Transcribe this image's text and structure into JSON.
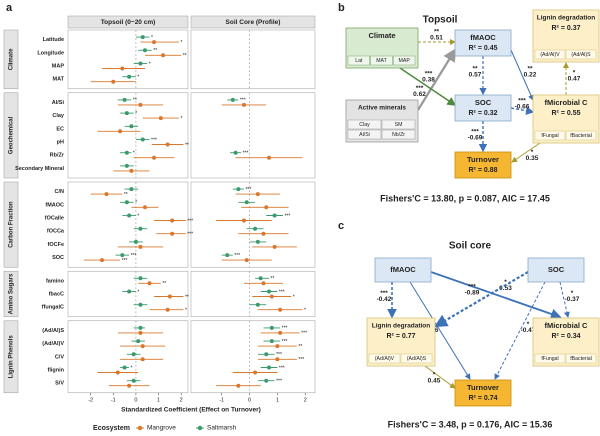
{
  "panel_a": {
    "label": "a",
    "facets": [
      "Topsoil (0~20 cm)",
      "Soil Core (Profile)"
    ],
    "facet_xlim": [
      [
        -3,
        2.3
      ],
      [
        -2.1,
        2.35
      ]
    ],
    "facet_xticks": [
      [
        -2,
        -1,
        0,
        1,
        2
      ],
      [
        -1,
        0,
        1,
        2
      ]
    ],
    "x_label": "Standardized Coefficient (Effect on Turnover)",
    "legend_title": "Ecosystem",
    "series": [
      {
        "name": "Mangrove",
        "color": "#d9782d"
      },
      {
        "name": "Saltmarsh",
        "color": "#3a9a6e"
      }
    ],
    "groups": [
      {
        "name": "Climate",
        "rows": [
          {
            "label": "Latitude",
            "topsoil": [
              [
                0.8,
                0.2,
                1.9,
                "*"
              ],
              [
                0.3,
                0,
                0.6,
                "*"
              ]
            ]
          },
          {
            "label": "Longitude",
            "topsoil": [
              [
                1.2,
                0.4,
                2.0,
                "**"
              ],
              [
                0.4,
                0.1,
                0.7,
                "**"
              ]
            ]
          },
          {
            "label": "MAP",
            "topsoil": [
              [
                -0.6,
                -1.5,
                0.4
              ],
              [
                0.2,
                -0.1,
                0.5,
                "*"
              ]
            ]
          },
          {
            "label": "MAT",
            "topsoil": [
              [
                -1.0,
                -2.0,
                0
              ],
              [
                -0.3,
                -0.6,
                0,
                "*"
              ]
            ]
          }
        ]
      },
      {
        "name": "Geochemical",
        "rows": [
          {
            "label": "Al/Si",
            "topsoil": [
              [
                0.2,
                -0.8,
                1.2
              ],
              [
                -0.5,
                -0.8,
                -0.2,
                "**"
              ]
            ],
            "soil_core": [
              [
                -0.2,
                -1.0,
                0.6
              ],
              [
                -0.6,
                -0.8,
                -0.4,
                "***"
              ]
            ]
          },
          {
            "label": "Clay",
            "topsoil": [
              [
                1.1,
                0.3,
                1.9,
                "*"
              ],
              [
                -0.4,
                -0.7,
                -0.1,
                "*"
              ]
            ]
          },
          {
            "label": "EC",
            "topsoil": [
              [
                -0.7,
                -1.7,
                0.2
              ],
              [
                -0.2,
                -0.5,
                0.1
              ]
            ]
          },
          {
            "label": "pH",
            "topsoil": [
              [
                1.4,
                0.7,
                2.1,
                "**"
              ],
              [
                0.3,
                0,
                0.6,
                "***"
              ]
            ]
          },
          {
            "label": "Rb/Zr",
            "topsoil": [
              [
                0.8,
                -0.1,
                1.7
              ],
              [
                -0.4,
                -0.7,
                -0.2,
                "*"
              ]
            ],
            "soil_core": [
              [
                0.7,
                -0.5,
                1.9
              ],
              [
                -0.5,
                -0.7,
                -0.3,
                "***"
              ]
            ]
          },
          {
            "label": "Secondary Mineral",
            "topsoil": [
              [
                -0.2,
                -1,
                0.6
              ],
              [
                -0.4,
                -0.7,
                -0.1
              ]
            ]
          }
        ]
      },
      {
        "name": "Carbon Fraction",
        "rows": [
          {
            "label": "C/N",
            "topsoil": [
              [
                -1.3,
                -2.0,
                -0.6,
                "**"
              ],
              [
                -0.2,
                -0.5,
                0.1
              ]
            ],
            "soil_core": [
              [
                0.3,
                -0.5,
                1.1
              ],
              [
                -0.4,
                -0.6,
                -0.2,
                "***"
              ]
            ]
          },
          {
            "label": "fMAOC",
            "topsoil": [
              [
                0.4,
                -0.2,
                1.0
              ],
              [
                -0.4,
                -0.7,
                -0.1,
                "*"
              ]
            ],
            "soil_core": [
              [
                0.6,
                -0.3,
                1.4
              ],
              [
                -0.1,
                -0.4,
                0.2
              ]
            ]
          },
          {
            "label": "fOCalle",
            "topsoil": [
              [
                1.6,
                0.8,
                2.2,
                "***"
              ],
              [
                -0.3,
                -0.6,
                0,
                "*"
              ]
            ],
            "soil_core": [
              [
                -0.2,
                -1.2,
                0.8
              ],
              [
                0.9,
                0.6,
                1.2,
                "***"
              ]
            ]
          },
          {
            "label": "fOCCa",
            "topsoil": [
              [
                1.6,
                0.9,
                2.2,
                "***"
              ],
              [
                0.2,
                -0.1,
                0.5
              ]
            ],
            "soil_core": [
              [
                0.5,
                -0.4,
                1.4
              ],
              [
                0.2,
                -0.1,
                0.5
              ]
            ]
          },
          {
            "label": "fOCFe",
            "topsoil": [
              [
                0.2,
                -0.8,
                1.2
              ],
              [
                0,
                -0.3,
                0.3
              ]
            ],
            "soil_core": [
              [
                0.9,
                0.1,
                1.7
              ],
              [
                0.3,
                0,
                0.6
              ]
            ]
          },
          {
            "label": "SOC",
            "topsoil": [
              [
                -1.5,
                -2.3,
                -0.7,
                "***"
              ],
              [
                -0.6,
                -0.9,
                -0.3,
                "***"
              ]
            ],
            "soil_core": [
              [
                -0.1,
                -1,
                0.8
              ],
              [
                -0.8,
                -1.0,
                -0.6,
                "***"
              ]
            ]
          }
        ]
      },
      {
        "name": "Amino Sugars",
        "rows": [
          {
            "label": "famino",
            "topsoil": [
              [
                0.6,
                0.1,
                1.1,
                "**"
              ],
              [
                0.2,
                -0.1,
                0.5
              ]
            ],
            "soil_core": [
              [
                0.5,
                -0.2,
                1.2
              ],
              [
                0.4,
                0.2,
                0.7,
                "**"
              ]
            ]
          },
          {
            "label": "fbacC",
            "topsoil": [
              [
                1.5,
                0.8,
                2.1,
                "**"
              ],
              [
                -0.3,
                -0.6,
                0,
                "*"
              ]
            ],
            "soil_core": [
              [
                0.8,
                0.1,
                1.5,
                "*"
              ],
              [
                0.7,
                0.4,
                1.0,
                "***"
              ]
            ]
          },
          {
            "label": "ffungalC",
            "topsoil": [
              [
                1.4,
                0.6,
                2.1,
                "*"
              ],
              [
                0.2,
                -0.1,
                0.5
              ]
            ],
            "soil_core": [
              [
                1.1,
                0.3,
                1.9,
                "*"
              ],
              [
                0.3,
                0,
                0.6
              ]
            ]
          }
        ]
      },
      {
        "name": "Lignin Phenols",
        "rows": [
          {
            "label": "(Ad/Al)S",
            "topsoil": [
              [
                0.2,
                -0.8,
                1.2
              ],
              [
                0.2,
                -0.1,
                0.4
              ]
            ],
            "soil_core": [
              [
                1.1,
                0.4,
                1.8,
                "***"
              ],
              [
                0.8,
                0.5,
                1.1,
                "***"
              ]
            ]
          },
          {
            "label": "(Ad/Al)V",
            "topsoil": [
              [
                0.3,
                -0.7,
                1.3
              ],
              [
                0.1,
                -0.2,
                0.4
              ]
            ],
            "soil_core": [
              [
                1.0,
                0.3,
                1.7,
                "**"
              ],
              [
                0.8,
                0.5,
                1.1,
                "***"
              ]
            ]
          },
          {
            "label": "C/V",
            "topsoil": [
              [
                0.3,
                -0.7,
                1.2
              ],
              [
                -0.1,
                -0.4,
                0.2
              ]
            ],
            "soil_core": [
              [
                1.0,
                0.3,
                1.7,
                "***"
              ],
              [
                0.6,
                0.3,
                0.9,
                "***"
              ]
            ]
          },
          {
            "label": "flignin",
            "topsoil": [
              [
                -0.8,
                -1.7,
                0.1
              ],
              [
                -0.5,
                -0.7,
                -0.3,
                "*"
              ]
            ],
            "soil_core": [
              [
                0.2,
                -0.6,
                1.0
              ],
              [
                0.7,
                0.4,
                1.0,
                "***"
              ]
            ]
          },
          {
            "label": "S/V",
            "topsoil": [
              [
                -0.3,
                -1.2,
                0.6
              ],
              [
                -0.1,
                -0.4,
                0.2
              ]
            ],
            "soil_core": [
              [
                -0.4,
                -1.2,
                0.4
              ],
              [
                0.6,
                0.3,
                0.9,
                "***"
              ]
            ]
          }
        ]
      }
    ]
  },
  "panel_b": {
    "label": "b",
    "title": "Topsoil",
    "fit": "Fishers'C = 13.80, p = 0.087, AIC = 17.45",
    "nodes": [
      {
        "label": "Climate",
        "subs": [
          "Lat",
          "MAT",
          "MAP"
        ]
      },
      {
        "label": "Active minerals",
        "subs": [
          "Clay",
          "SM",
          "Al/Si",
          "Nb/Zr"
        ]
      },
      {
        "label": "fMAOC",
        "r2": "R² = 0.45"
      },
      {
        "label": "SOC",
        "r2": "R² = 0.32"
      },
      {
        "label": "Turnover",
        "r2": "R² = 0.88"
      },
      {
        "label": "Lignin degradation",
        "r2": "R² = 0.37",
        "subs": [
          "(Ad/Al)V",
          "(Ad/Al)S"
        ]
      },
      {
        "label": "fMicrobial C",
        "r2": "R² = 0.55",
        "subs": [
          "fFungal",
          "fBacterial"
        ]
      }
    ],
    "edges": [
      {
        "coef": 0.51,
        "stars": "**"
      },
      {
        "coef": 0.38,
        "stars": "***"
      },
      {
        "coef": 0.62,
        "stars": "***"
      },
      {
        "coef": 0.57,
        "stars": "**"
      },
      {
        "coef": 0.22,
        "stars": "**"
      },
      {
        "coef": -0.66,
        "stars": "***"
      },
      {
        "coef": -0.69,
        "stars": "***"
      },
      {
        "coef": 0.47,
        "stars": "*"
      },
      {
        "coef": 0.35,
        "stars": "*"
      }
    ]
  },
  "panel_c": {
    "label": "c",
    "title": "Soil core",
    "fit": "Fishers'C = 3.48, p = 0.176, AIC = 15.36",
    "nodes": [
      {
        "label": "fMAOC"
      },
      {
        "label": "SOC"
      },
      {
        "label": "Lignin degradation",
        "r2": "R² = 0.77",
        "subs": [
          "(Ad/Al)V",
          "(Ad/Al)S"
        ]
      },
      {
        "label": "fMicrobial C",
        "r2": "R² = 0.34",
        "subs": [
          "fFungal",
          "fBacterial"
        ]
      },
      {
        "label": "Turnover",
        "r2": "R² = 0.74"
      }
    ],
    "edges": [
      {
        "coef": -0.42,
        "stars": "***"
      },
      {
        "coef": 0.53,
        "stars": "*"
      },
      {
        "coef": -0.89,
        "stars": "***"
      },
      {
        "coef": -0.37,
        "stars": "*"
      },
      {
        "coef": 0.26
      },
      {
        "coef": -0.47,
        "stars": "*"
      },
      {
        "coef": 0.45,
        "stars": "*"
      }
    ]
  }
}
